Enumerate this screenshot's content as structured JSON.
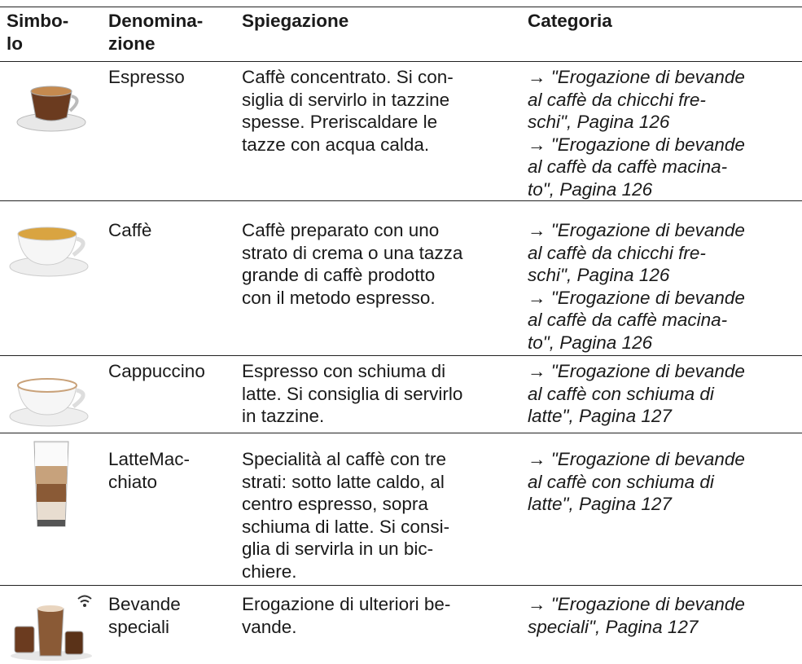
{
  "table": {
    "header": [
      [
        "Simbo-",
        "lo"
      ],
      [
        "Denomina-",
        "zione"
      ],
      [
        "Spiegazione"
      ],
      [
        "Categoria"
      ]
    ],
    "rows": [
      {
        "name": [
          "Espresso"
        ],
        "explanation": [
          "Caffè concentrato. Si con-",
          "siglia di servirlo in tazzine",
          "spesse. Preriscaldare le",
          "tazze con acqua calda."
        ],
        "category": [
          "→ \"Erogazione di bevande",
          "al caffè da chicchi fre-",
          "schi\", Pagina 126",
          "→ \"Erogazione di bevande",
          "al caffè da caffè macina-",
          "to\", Pagina 126"
        ]
      },
      {
        "name": [
          "Caffè"
        ],
        "explanation": [
          "Caffè preparato con uno",
          "strato di crema o una tazza",
          "grande di caffè prodotto",
          "con il metodo espresso."
        ],
        "category": [
          "→ \"Erogazione di bevande",
          "al caffè da chicchi fre-",
          "schi\", Pagina 126",
          "→ \"Erogazione di bevande",
          "al caffè da caffè macina-",
          "to\", Pagina 126"
        ]
      },
      {
        "name": [
          "Cappuccino"
        ],
        "explanation": [
          "Espresso con schiuma di",
          "latte. Si consiglia di servirlo",
          "in tazzine."
        ],
        "category": [
          "→ \"Erogazione di bevande",
          "al caffè con schiuma di",
          "latte\", Pagina 127"
        ]
      },
      {
        "name": [
          "LatteMac-",
          "chiato"
        ],
        "explanation": [
          "Specialità al caffè con tre",
          "strati: sotto latte caldo, al",
          "centro espresso, sopra",
          "schiuma di latte. Si consi-",
          "glia di servirla in un bic-",
          "chiere."
        ],
        "category": [
          "→ \"Erogazione di bevande",
          "al caffè con schiuma di",
          "latte\", Pagina 127"
        ]
      },
      {
        "name": [
          "Bevande",
          "speciali"
        ],
        "explanation": [
          "Erogazione di ulteriori be-",
          "vande."
        ],
        "category": [
          "→ \"Erogazione di bevande",
          "speciali\", Pagina 127"
        ]
      }
    ]
  }
}
